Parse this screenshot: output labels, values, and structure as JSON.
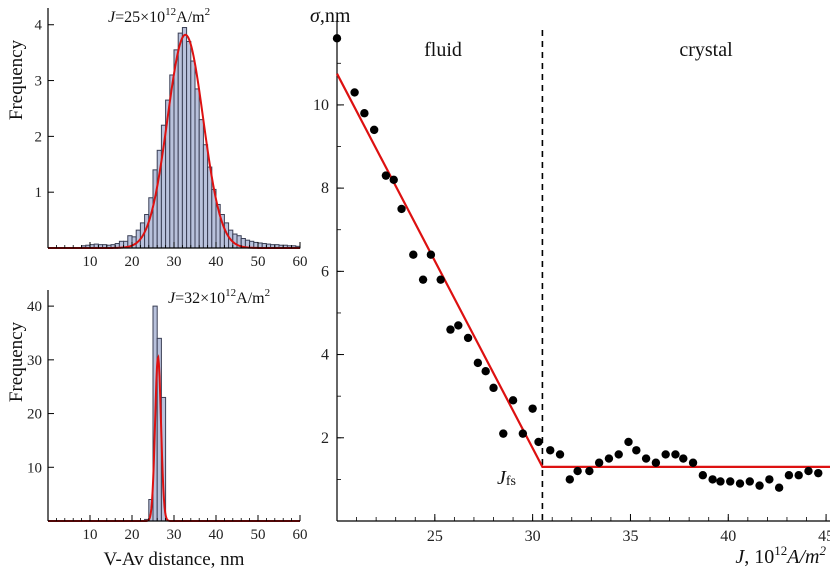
{
  "chart_data": [
    {
      "type": "histogram",
      "panel": "top-left",
      "annotation": "J=25×10¹²A/m²",
      "annotation_parts": {
        "var": "J",
        "rest": "=25×10",
        "exp": "12",
        "unit": "A/m",
        "unit_exp": "2"
      },
      "ylabel": "Frequency",
      "xlim": [
        0,
        60
      ],
      "ylim": [
        0,
        4.3
      ],
      "xticks": [
        "10",
        "20",
        "30",
        "40",
        "50",
        "60"
      ],
      "yticks": [
        "1",
        "2",
        "3",
        "4"
      ],
      "bin_width": 1,
      "bin_starts": [
        8,
        9,
        10,
        11,
        12,
        13,
        14,
        15,
        16,
        17,
        18,
        19,
        20,
        21,
        22,
        23,
        24,
        25,
        26,
        27,
        28,
        29,
        30,
        31,
        32,
        33,
        34,
        35,
        36,
        37,
        38,
        39,
        40,
        41,
        42,
        43,
        44,
        45,
        46,
        47,
        48,
        49,
        50,
        51,
        52,
        53,
        54,
        55,
        56,
        57,
        58,
        59
      ],
      "bar_values": [
        0.04,
        0.05,
        0.06,
        0.07,
        0.06,
        0.06,
        0.05,
        0.06,
        0.08,
        0.12,
        0.12,
        0.22,
        0.2,
        0.32,
        0.45,
        0.6,
        0.9,
        1.4,
        1.75,
        2.2,
        2.65,
        3.1,
        3.55,
        3.85,
        3.95,
        3.7,
        3.35,
        2.85,
        2.3,
        1.85,
        1.45,
        1.05,
        0.78,
        0.6,
        0.45,
        0.32,
        0.25,
        0.22,
        0.17,
        0.14,
        0.12,
        0.1,
        0.09,
        0.08,
        0.07,
        0.06,
        0.06,
        0.05,
        0.05,
        0.04,
        0.04,
        0.03
      ],
      "fit": {
        "type": "gaussian",
        "mean": 32.7,
        "sigma": 4.25,
        "peak": 3.82,
        "color": "#dd1111"
      }
    },
    {
      "type": "histogram",
      "panel": "bottom-left",
      "annotation": "J=32×10¹²A/m²",
      "annotation_parts": {
        "var": "J",
        "rest": "=32×10",
        "exp": "12",
        "unit": "A/m",
        "unit_exp": "2"
      },
      "ylabel": "Frequency",
      "xlabel": "V-Av distance, nm",
      "xlim": [
        0,
        60
      ],
      "ylim": [
        0,
        43
      ],
      "xticks": [
        "10",
        "20",
        "30",
        "40",
        "50",
        "60"
      ],
      "yticks": [
        "10",
        "20",
        "30",
        "40"
      ],
      "bin_width": 1,
      "bin_starts": [
        23,
        24,
        25,
        26,
        27
      ],
      "bar_values": [
        0.3,
        4,
        40,
        34,
        23
      ],
      "fit": {
        "type": "gaussian",
        "mean": 26.2,
        "sigma": 0.7,
        "peak": 30.5,
        "color": "#dd1111"
      }
    },
    {
      "type": "scatter",
      "panel": "right",
      "ylabel": "σ, nm",
      "ylabel_parts": {
        "var": "σ",
        "rest": ",nm"
      },
      "xlabel": "J, 10¹² A/m²",
      "xlabel_parts": {
        "var": "J",
        "rest": ", 10",
        "exp": "12",
        "unit": "A/m",
        "unit_exp": "2"
      },
      "xlim": [
        20,
        45.2
      ],
      "ylim": [
        0,
        11.8
      ],
      "xticks": [
        "25",
        "30",
        "35",
        "40",
        "45"
      ],
      "yticks": [
        "2",
        "4",
        "6",
        "8",
        "10"
      ],
      "region_labels": {
        "left": "fluid",
        "right": "crystal"
      },
      "threshold": {
        "x": 30.5,
        "label_var": "J",
        "label_sub": "fs"
      },
      "points": {
        "x": [
          20,
          20.9,
          21.4,
          21.9,
          22.5,
          22.9,
          23.3,
          23.9,
          24.4,
          24.8,
          25.3,
          25.8,
          26.2,
          26.7,
          27.2,
          27.6,
          28,
          28.5,
          29,
          29.5,
          30,
          30.3,
          30.9,
          31.4,
          31.9,
          32.3,
          32.9,
          33.4,
          33.9,
          34.4,
          34.9,
          35.3,
          35.8,
          36.3,
          36.8,
          37.3,
          37.7,
          38.2,
          38.7,
          39.2,
          39.6,
          40.1,
          40.6,
          41.1,
          41.6,
          42.1,
          42.6,
          43.1,
          43.6,
          44.1,
          44.6
        ],
        "y": [
          11.6,
          10.3,
          9.8,
          9.4,
          8.3,
          8.2,
          7.5,
          6.4,
          5.8,
          6.4,
          5.8,
          4.6,
          4.7,
          4.4,
          3.8,
          3.6,
          3.2,
          2.1,
          2.9,
          2.1,
          2.7,
          1.9,
          1.7,
          1.6,
          1,
          1.2,
          1.2,
          1.4,
          1.5,
          1.6,
          1.9,
          1.7,
          1.5,
          1.4,
          1.6,
          1.6,
          1.5,
          1.4,
          1.1,
          1,
          0.95,
          0.95,
          0.9,
          0.95,
          0.85,
          1,
          0.8,
          1.1,
          1.1,
          1.2,
          1.15
        ]
      },
      "fit_line": {
        "x": [
          20,
          30.5,
          45.2
        ],
        "y": [
          10.75,
          1.3,
          1.3
        ],
        "color": "#dd1111"
      }
    }
  ]
}
